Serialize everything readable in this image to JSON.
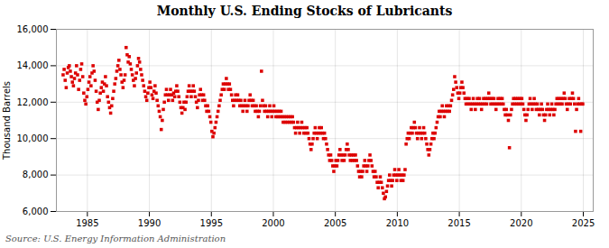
{
  "chart_data": {
    "type": "scatter",
    "title": "Monthly U.S. Ending Stocks of Lubricants",
    "ylabel": "Thousand Barrels",
    "source": "Source: U.S. Energy Information Administration",
    "color": "#DD0000",
    "marker": "square",
    "grid": true,
    "xlim": [
      1982.5,
      2025.8
    ],
    "xticks": [
      1985,
      1990,
      1995,
      2000,
      2005,
      2010,
      2015,
      2020,
      2025
    ],
    "ylim": [
      6000,
      16000
    ],
    "yticks": [
      {
        "value": 6000,
        "label": "6,000"
      },
      {
        "value": 8000,
        "label": "8,000"
      },
      {
        "value": 10000,
        "label": "10,000"
      },
      {
        "value": 12000,
        "label": "12,000"
      },
      {
        "value": 14000,
        "label": "14,000"
      },
      {
        "value": 16000,
        "label": "16,000"
      }
    ],
    "x": [
      1983.0416666666667,
      1983.125,
      1983.2083333333333,
      1983.2916666666667,
      1983.375,
      1983.4583333333333,
      1983.5416666666667,
      1983.625,
      1983.7083333333333,
      1983.7916666666667,
      1983.875,
      1983.9583333333333,
      1984.0416666666667,
      1984.125,
      1984.2083333333333,
      1984.2916666666667,
      1984.375,
      1984.4583333333333,
      1984.5416666666667,
      1984.625,
      1984.7083333333333,
      1984.7916666666667,
      1984.875,
      1984.9583333333333,
      1985.0416666666667,
      1985.125,
      1985.2083333333333,
      1985.2916666666667,
      1985.375,
      1985.4583333333333,
      1985.5416666666667,
      1985.625,
      1985.7083333333333,
      1985.7916666666667,
      1985.875,
      1985.9583333333333,
      1986.0416666666667,
      1986.125,
      1986.2083333333333,
      1986.2916666666667,
      1986.375,
      1986.4583333333333,
      1986.5416666666667,
      1986.625,
      1986.7083333333333,
      1986.7916666666667,
      1986.875,
      1986.9583333333333,
      1987.0416666666667,
      1987.125,
      1987.2083333333333,
      1987.2916666666667,
      1987.375,
      1987.4583333333333,
      1987.5416666666667,
      1987.625,
      1987.7083333333333,
      1987.7916666666667,
      1987.875,
      1987.9583333333333,
      1988.0416666666667,
      1988.125,
      1988.2083333333333,
      1988.2916666666667,
      1988.375,
      1988.4583333333333,
      1988.5416666666667,
      1988.625,
      1988.7083333333333,
      1988.7916666666667,
      1988.875,
      1988.9583333333333,
      1989.0416666666667,
      1989.125,
      1989.2083333333333,
      1989.2916666666667,
      1989.375,
      1989.4583333333333,
      1989.5416666666667,
      1989.625,
      1989.7083333333333,
      1989.7916666666667,
      1989.875,
      1989.9583333333333,
      1990.0416666666667,
      1990.125,
      1990.2083333333333,
      1990.2916666666667,
      1990.375,
      1990.4583333333333,
      1990.5416666666667,
      1990.625,
      1990.7083333333333,
      1990.7916666666667,
      1990.875,
      1990.9583333333333,
      1991.0416666666667,
      1991.125,
      1991.2083333333333,
      1991.2916666666667,
      1991.375,
      1991.4583333333333,
      1991.5416666666667,
      1991.625,
      1991.7083333333333,
      1991.7916666666667,
      1991.875,
      1991.9583333333333,
      1992.0416666666667,
      1992.125,
      1992.2083333333333,
      1992.2916666666667,
      1992.375,
      1992.4583333333333,
      1992.5416666666667,
      1992.625,
      1992.7083333333333,
      1992.7916666666667,
      1992.875,
      1992.9583333333333,
      1993.0416666666667,
      1993.125,
      1993.2083333333333,
      1993.2916666666667,
      1993.375,
      1993.4583333333333,
      1993.5416666666667,
      1993.625,
      1993.7083333333333,
      1993.7916666666667,
      1993.875,
      1993.9583333333333,
      1994.0416666666667,
      1994.125,
      1994.2083333333333,
      1994.2916666666667,
      1994.375,
      1994.4583333333333,
      1994.5416666666667,
      1994.625,
      1994.7083333333333,
      1994.7916666666667,
      1994.875,
      1994.9583333333333,
      1995.0416666666667,
      1995.125,
      1995.2083333333333,
      1995.2916666666667,
      1995.375,
      1995.4583333333333,
      1995.5416666666667,
      1995.625,
      1995.7083333333333,
      1995.7916666666667,
      1995.875,
      1995.9583333333333,
      1996.0416666666667,
      1996.125,
      1996.2083333333333,
      1996.2916666666667,
      1996.375,
      1996.4583333333333,
      1996.5416666666667,
      1996.625,
      1996.7083333333333,
      1996.7916666666667,
      1996.875,
      1996.9583333333333,
      1997.0416666666667,
      1997.125,
      1997.2083333333333,
      1997.2916666666667,
      1997.375,
      1997.4583333333333,
      1997.5416666666667,
      1997.625,
      1997.7083333333333,
      1997.7916666666667,
      1997.875,
      1997.9583333333333,
      1998.0416666666667,
      1998.125,
      1998.2083333333333,
      1998.2916666666667,
      1998.375,
      1998.4583333333333,
      1998.5416666666667,
      1998.625,
      1998.7083333333333,
      1998.7916666666667,
      1998.875,
      1998.9583333333333,
      1999.0416666666667,
      1999.125,
      1999.2083333333333,
      1999.2916666666667,
      1999.375,
      1999.4583333333333,
      1999.5416666666667,
      1999.625,
      1999.7083333333333,
      1999.7916666666667,
      1999.875,
      1999.9583333333333,
      2000.0416666666667,
      2000.125,
      2000.2083333333333,
      2000.2916666666667,
      2000.375,
      2000.4583333333333,
      2000.5416666666667,
      2000.625,
      2000.7083333333333,
      2000.7916666666667,
      2000.875,
      2000.9583333333333,
      2001.0416666666667,
      2001.125,
      2001.2083333333333,
      2001.2916666666667,
      2001.375,
      2001.4583333333333,
      2001.5416666666667,
      2001.625,
      2001.7083333333333,
      2001.7916666666667,
      2001.875,
      2001.9583333333333,
      2002.0416666666667,
      2002.125,
      2002.2083333333333,
      2002.2916666666667,
      2002.375,
      2002.4583333333333,
      2002.5416666666667,
      2002.625,
      2002.7083333333333,
      2002.7916666666667,
      2002.875,
      2002.9583333333333,
      2003.0416666666667,
      2003.125,
      2003.2083333333333,
      2003.2916666666667,
      2003.375,
      2003.4583333333333,
      2003.5416666666667,
      2003.625,
      2003.7083333333333,
      2003.7916666666667,
      2003.875,
      2003.9583333333333,
      2004.0416666666667,
      2004.125,
      2004.2083333333333,
      2004.2916666666667,
      2004.375,
      2004.4583333333333,
      2004.5416666666667,
      2004.625,
      2004.7083333333333,
      2004.7916666666667,
      2004.875,
      2004.9583333333333,
      2005.0416666666667,
      2005.125,
      2005.2083333333333,
      2005.2916666666667,
      2005.375,
      2005.4583333333333,
      2005.5416666666667,
      2005.625,
      2005.7083333333333,
      2005.7916666666667,
      2005.875,
      2005.9583333333333,
      2006.0416666666667,
      2006.125,
      2006.2083333333333,
      2006.2916666666667,
      2006.375,
      2006.4583333333333,
      2006.5416666666667,
      2006.625,
      2006.7083333333333,
      2006.7916666666667,
      2006.875,
      2006.9583333333333,
      2007.0416666666667,
      2007.125,
      2007.2083333333333,
      2007.2916666666667,
      2007.375,
      2007.4583333333333,
      2007.5416666666667,
      2007.625,
      2007.7083333333333,
      2007.7916666666667,
      2007.875,
      2007.9583333333333,
      2008.0416666666667,
      2008.125,
      2008.2083333333333,
      2008.2916666666667,
      2008.375,
      2008.4583333333333,
      2008.5416666666667,
      2008.625,
      2008.7083333333333,
      2008.7916666666667,
      2008.875,
      2008.9583333333333,
      2009.0416666666667,
      2009.125,
      2009.2083333333333,
      2009.2916666666667,
      2009.375,
      2009.4583333333333,
      2009.5416666666667,
      2009.625,
      2009.7083333333333,
      2009.7916666666667,
      2009.875,
      2009.9583333333333,
      2010.0416666666667,
      2010.125,
      2010.2083333333333,
      2010.2916666666667,
      2010.375,
      2010.4583333333333,
      2010.5416666666667,
      2010.625,
      2010.7083333333333,
      2010.7916666666667,
      2010.875,
      2010.9583333333333,
      2011.0416666666667,
      2011.125,
      2011.2083333333333,
      2011.2916666666667,
      2011.375,
      2011.4583333333333,
      2011.5416666666667,
      2011.625,
      2011.7083333333333,
      2011.7916666666667,
      2011.875,
      2011.9583333333333,
      2012.0416666666667,
      2012.125,
      2012.2083333333333,
      2012.2916666666667,
      2012.375,
      2012.4583333333333,
      2012.5416666666667,
      2012.625,
      2012.7083333333333,
      2012.7916666666667,
      2012.875,
      2012.9583333333333,
      2013.0416666666667,
      2013.125,
      2013.2083333333333,
      2013.2916666666667,
      2013.375,
      2013.4583333333333,
      2013.5416666666667,
      2013.625,
      2013.7083333333333,
      2013.7916666666667,
      2013.875,
      2013.9583333333333,
      2014.0416666666667,
      2014.125,
      2014.2083333333333,
      2014.2916666666667,
      2014.375,
      2014.4583333333333,
      2014.5416666666667,
      2014.625,
      2014.7083333333333,
      2014.7916666666667,
      2014.875,
      2014.9583333333333,
      2015.0416666666667,
      2015.125,
      2015.2083333333333,
      2015.2916666666667,
      2015.375,
      2015.4583333333333,
      2015.5416666666667,
      2015.625,
      2015.7083333333333,
      2015.7916666666667,
      2015.875,
      2015.9583333333333,
      2016.0416666666667,
      2016.125,
      2016.2083333333333,
      2016.2916666666667,
      2016.375,
      2016.4583333333333,
      2016.5416666666667,
      2016.625,
      2016.7083333333333,
      2016.7916666666667,
      2016.875,
      2016.9583333333333,
      2017.0416666666667,
      2017.125,
      2017.2083333333333,
      2017.2916666666667,
      2017.375,
      2017.4583333333333,
      2017.5416666666667,
      2017.625,
      2017.7083333333333,
      2017.7916666666667,
      2017.875,
      2017.9583333333333,
      2018.0416666666667,
      2018.125,
      2018.2083333333333,
      2018.2916666666667,
      2018.375,
      2018.4583333333333,
      2018.5416666666667,
      2018.625,
      2018.7083333333333,
      2018.7916666666667,
      2018.875,
      2018.9583333333333,
      2019.0416666666667,
      2019.125,
      2019.2083333333333,
      2019.2916666666667,
      2019.375,
      2019.4583333333333,
      2019.5416666666667,
      2019.625,
      2019.7083333333333,
      2019.7916666666667,
      2019.875,
      2019.9583333333333,
      2020.0416666666667,
      2020.125,
      2020.2083333333333,
      2020.2916666666667,
      2020.375,
      2020.4583333333333,
      2020.5416666666667,
      2020.625,
      2020.7083333333333,
      2020.7916666666667,
      2020.875,
      2020.9583333333333,
      2021.0416666666667,
      2021.125,
      2021.2083333333333,
      2021.2916666666667,
      2021.375,
      2021.4583333333333,
      2021.5416666666667,
      2021.625,
      2021.7083333333333,
      2021.7916666666667,
      2021.875,
      2021.9583333333333,
      2022.0416666666667,
      2022.125,
      2022.2083333333333,
      2022.2916666666667,
      2022.375,
      2022.4583333333333,
      2022.5416666666667,
      2022.625,
      2022.7083333333333,
      2022.7916666666667,
      2022.875,
      2022.9583333333333,
      2023.0416666666667,
      2023.125,
      2023.2083333333333,
      2023.2916666666667,
      2023.375,
      2023.4583333333333,
      2023.5416666666667,
      2023.625,
      2023.7083333333333,
      2023.7916666666667,
      2023.875,
      2023.9583333333333,
      2024.0416666666667,
      2024.125,
      2024.2083333333333,
      2024.2916666666667,
      2024.375,
      2024.4583333333333,
      2024.5416666666667,
      2024.625,
      2024.7083333333333,
      2024.7916666666667,
      2024.875,
      2024.9583333333333
    ],
    "values": [
      13500,
      13800,
      13200,
      12800,
      13600,
      13900,
      14000,
      13700,
      13400,
      13100,
      12900,
      13300,
      13600,
      14000,
      13500,
      12700,
      13200,
      13800,
      14100,
      13400,
      12500,
      12100,
      11900,
      12300,
      12700,
      13100,
      13400,
      12900,
      13600,
      14000,
      13700,
      13200,
      12600,
      12000,
      11600,
      12100,
      12500,
      12800,
      13100,
      12600,
      13000,
      13400,
      12900,
      12300,
      12000,
      11700,
      11400,
      11800,
      12200,
      12600,
      13000,
      13300,
      13700,
      14000,
      14300,
      13800,
      13500,
      13100,
      12800,
      13200,
      13500,
      15000,
      14600,
      14200,
      14500,
      14100,
      13800,
      13500,
      13200,
      12900,
      13300,
      13600,
      14000,
      14400,
      14200,
      13800,
      13500,
      13200,
      12900,
      12600,
      12300,
      12100,
      12500,
      12800,
      13100,
      12800,
      12400,
      12200,
      12600,
      12900,
      12500,
      12100,
      11800,
      11500,
      11200,
      10500,
      11000,
      11600,
      12000,
      12400,
      12700,
      12400,
      12100,
      12400,
      12700,
      12400,
      12100,
      12500,
      12300,
      12600,
      12900,
      12600,
      12300,
      12000,
      11700,
      11400,
      11700,
      12000,
      11600,
      12000,
      12300,
      12600,
      12900,
      12600,
      12300,
      12600,
      12900,
      12600,
      12300,
      12000,
      11700,
      12100,
      12400,
      12700,
      12400,
      12100,
      12400,
      12100,
      11800,
      11500,
      11800,
      11500,
      11200,
      10900,
      10400,
      10100,
      10300,
      10600,
      10900,
      11200,
      11500,
      11800,
      12100,
      12400,
      12700,
      13000,
      12700,
      13000,
      13300,
      13000,
      12700,
      13000,
      12700,
      12400,
      12100,
      11800,
      12100,
      12400,
      12100,
      12400,
      12100,
      11800,
      12100,
      11800,
      11500,
      11800,
      12100,
      11800,
      11500,
      11800,
      12100,
      12400,
      12100,
      11800,
      12100,
      11800,
      11500,
      11800,
      11500,
      11200,
      11500,
      11800,
      13700,
      12100,
      11800,
      11500,
      11800,
      11500,
      11200,
      11500,
      11800,
      11500,
      11200,
      11500,
      11800,
      11500,
      11200,
      11500,
      11200,
      11500,
      11200,
      11500,
      11200,
      10900,
      11200,
      10900,
      11200,
      10900,
      11200,
      10900,
      11200,
      10900,
      11200,
      10900,
      10600,
      10300,
      10600,
      10900,
      10600,
      10300,
      10600,
      10900,
      10600,
      10300,
      10600,
      10300,
      10600,
      10300,
      10000,
      9700,
      9400,
      9700,
      10000,
      10300,
      10600,
      10300,
      10000,
      10300,
      10600,
      10300,
      10600,
      10300,
      10000,
      10300,
      10000,
      9700,
      9400,
      9100,
      8800,
      9100,
      8800,
      8500,
      8200,
      8500,
      8800,
      8500,
      8800,
      9100,
      9400,
      9100,
      8800,
      9100,
      8800,
      9100,
      9400,
      9700,
      9400,
      9100,
      8800,
      9100,
      8800,
      9100,
      8800,
      9100,
      8800,
      8500,
      8200,
      7900,
      8200,
      7900,
      8200,
      8500,
      8800,
      8500,
      8200,
      8500,
      8800,
      9100,
      8800,
      8500,
      8200,
      7900,
      8200,
      7900,
      7600,
      7300,
      7600,
      7900,
      7600,
      7300,
      7000,
      6700,
      6800,
      7100,
      7400,
      7700,
      8000,
      7700,
      7400,
      7700,
      8000,
      8300,
      8000,
      7700,
      8000,
      8300,
      8000,
      7700,
      8000,
      7700,
      8000,
      8300,
      9700,
      10000,
      10300,
      10000,
      10300,
      10600,
      10300,
      10600,
      10900,
      10600,
      10300,
      10000,
      10300,
      10600,
      10300,
      10000,
      10300,
      10600,
      10300,
      10000,
      9700,
      9400,
      9100,
      9400,
      9700,
      10000,
      10300,
      10000,
      10300,
      10600,
      10900,
      11200,
      11500,
      11200,
      11500,
      11800,
      11500,
      11200,
      11500,
      11800,
      11500,
      11800,
      11500,
      11800,
      12100,
      12400,
      12700,
      13400,
      13100,
      12800,
      12500,
      12200,
      12500,
      12800,
      13100,
      12800,
      12500,
      12200,
      11900,
      12200,
      11900,
      12200,
      11900,
      11600,
      11900,
      12200,
      11900,
      11600,
      11900,
      12200,
      11900,
      12200,
      11900,
      11600,
      11900,
      12200,
      11900,
      12200,
      11900,
      12200,
      12500,
      12200,
      11900,
      12200,
      11900,
      12200,
      11900,
      11600,
      11900,
      12200,
      11900,
      12200,
      11900,
      12200,
      11900,
      11600,
      11300,
      11600,
      11300,
      11000,
      9500,
      11300,
      11600,
      11900,
      12200,
      11900,
      12200,
      11900,
      12200,
      11900,
      12200,
      11900,
      12200,
      11900,
      11600,
      11300,
      11000,
      11300,
      11600,
      11900,
      12200,
      11900,
      11600,
      11900,
      12200,
      11900,
      11600,
      11900,
      11600,
      11300,
      11600,
      11900,
      11600,
      11300,
      11000,
      11300,
      11600,
      11900,
      11600,
      11300,
      11600,
      11900,
      11600,
      11300,
      11600,
      11900,
      12200,
      11900,
      12200,
      11900,
      12200,
      11900,
      12200,
      12500,
      12200,
      11900,
      11600,
      11900,
      12200,
      11900,
      12200,
      12500,
      12200,
      11900,
      10400,
      11600,
      11900,
      12200,
      11900,
      10400,
      11900,
      11900
    ]
  }
}
